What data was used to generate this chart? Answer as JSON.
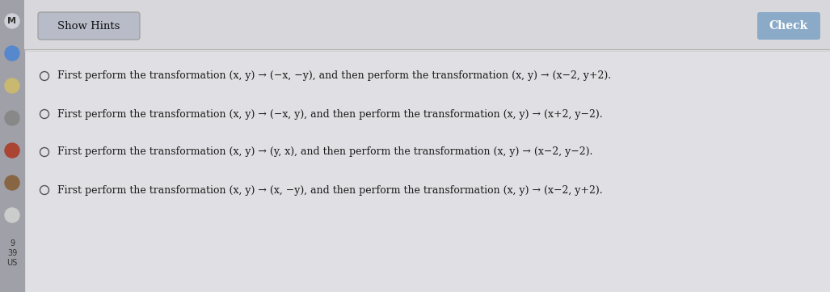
{
  "title": "Show Hints",
  "outer_bg": "#c8c8cc",
  "sidebar_bg": "#a0a0a8",
  "content_bg": "#e0e0e4",
  "button_bg": "#b8bcc8",
  "button_text_color": "#111111",
  "button_border": "#999999",
  "check_button_bg": "#8aaac8",
  "check_button_text": "#ffffff",
  "text_color": "#1a1a1a",
  "radio_color": "#555555",
  "fontsize": 9.0,
  "line_sep_color": "#aaaaaa",
  "option_lines": [
    "First perform the transformation (x, y) → (−x, −y), and then perform the transformation (x, y) → (x−2, y+2).",
    "First perform the transformation (x, y) → (−x, y), and then perform the transformation (x, y) → (x+2, y−2).",
    "First perform the transformation (x, y) → (y, x), and then perform the transformation (x, y) → (x−2, y−2).",
    "First perform the transformation (x, y) → (x, −y), and then perform the transformation (x, y) → (x−2, y+2)."
  ]
}
